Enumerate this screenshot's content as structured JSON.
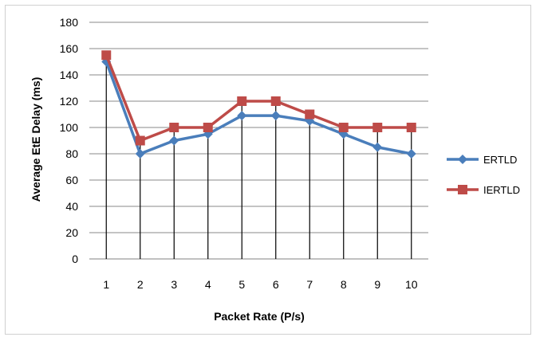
{
  "chart_data": {
    "type": "line",
    "xlabel": "Packet Rate (P/s)",
    "ylabel": "Average EtE Delay (ms)",
    "x": [
      1,
      2,
      3,
      4,
      5,
      6,
      7,
      8,
      9,
      10
    ],
    "ylim": [
      0,
      180
    ],
    "yticks": [
      0,
      20,
      40,
      60,
      80,
      100,
      120,
      140,
      160,
      180
    ],
    "grid": "horizontal",
    "drop_lines": true,
    "legend_position": "right",
    "series": [
      {
        "name": "ERTLD",
        "color": "#4A7EBB",
        "marker": "diamond",
        "values": [
          150,
          80,
          90,
          95,
          109,
          109,
          105,
          95,
          85,
          80
        ]
      },
      {
        "name": "IERTLD",
        "color": "#BE4B48",
        "marker": "square",
        "values": [
          155,
          90,
          100,
          100,
          120,
          120,
          110,
          100,
          100,
          100
        ]
      }
    ]
  }
}
